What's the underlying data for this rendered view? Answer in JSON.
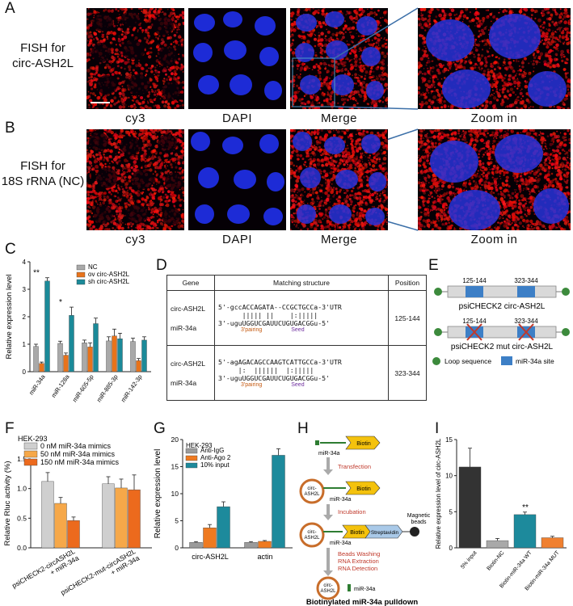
{
  "panel_letters": [
    "A",
    "B",
    "C",
    "D",
    "E",
    "F",
    "G",
    "H",
    "I"
  ],
  "panelA": {
    "row_title": [
      "FISH for",
      "circ-ASH2L"
    ],
    "captions": [
      "cy3",
      "DAPI",
      "Merge",
      "Zoom in"
    ]
  },
  "panelB": {
    "row_title": [
      "FISH for",
      "18S rRNA (NC)"
    ],
    "captions": [
      "cy3",
      "DAPI",
      "Merge",
      "Zoom in"
    ]
  },
  "colors": {
    "nc": "#a9a9a9",
    "ov": "#e8731b",
    "sh": "#1b8a99",
    "f0": "#cfcfcf",
    "f50": "#f6a849",
    "f150": "#ec6a1d",
    "igg": "#9b9b9b",
    "ago": "#ef7a20",
    "input": "#1d8a9c",
    "blue": "#3d7fc6",
    "dark": "#333333",
    "orangeI": "#f08030"
  },
  "chart_data": [
    {
      "id": "C",
      "type": "bar",
      "ylabel": "Relative expression level",
      "ylim": [
        0,
        4
      ],
      "yticks": [
        0,
        1,
        2,
        3,
        4
      ],
      "categories": [
        "miR-34a",
        "miR-128a",
        "miR-605-5p",
        "miR-885-3p",
        "miR-142-3p"
      ],
      "series": [
        {
          "name": "NC",
          "values": [
            0.92,
            1.03,
            1.05,
            1.12,
            1.1
          ],
          "err": [
            0.08,
            0.08,
            0.1,
            0.15,
            0.12
          ]
        },
        {
          "name": "ov circ-ASH2L",
          "values": [
            0.3,
            0.6,
            0.9,
            1.3,
            0.4
          ],
          "err": [
            0.05,
            0.08,
            0.15,
            0.25,
            0.08
          ]
        },
        {
          "name": "sh circ-ASH2L",
          "values": [
            3.3,
            2.05,
            1.75,
            1.2,
            1.15
          ],
          "err": [
            0.12,
            0.3,
            0.2,
            0.2,
            0.12
          ]
        }
      ],
      "annotations": [
        {
          "category": 0,
          "text": "**"
        },
        {
          "category": 1,
          "text": "*"
        }
      ]
    },
    {
      "id": "F",
      "type": "bar",
      "ylabel": "Relative Rluc activity (%)",
      "ylim": [
        0,
        1.5
      ],
      "yticks": [
        0.0,
        0.5,
        1.0,
        1.5
      ],
      "legend_title": "HEK-293",
      "categories": [
        "psiCHECK2-circASH2L\n+ miR-34a",
        "psiCHECK2-mut-circASH2L\n+ miR-34a"
      ],
      "series": [
        {
          "name": "0 nM miR-34a mimics",
          "values": [
            1.12,
            1.08
          ],
          "err": [
            0.15,
            0.12
          ]
        },
        {
          "name": "50 nM miR-34a mimics",
          "values": [
            0.75,
            1.01
          ],
          "err": [
            0.1,
            0.15
          ]
        },
        {
          "name": "150 nM miR-34a mimics",
          "values": [
            0.46,
            0.98
          ],
          "err": [
            0.06,
            0.25
          ]
        }
      ]
    },
    {
      "id": "G",
      "type": "bar",
      "ylabel": "Relative expression level",
      "ylim": [
        0,
        20
      ],
      "yticks": [
        0,
        5,
        10,
        15,
        20
      ],
      "legend_title": "HEK-293",
      "categories": [
        "circ-ASH2L",
        "actin"
      ],
      "series": [
        {
          "name": "Anti-IgG",
          "values": [
            1.0,
            1.0
          ],
          "err": [
            0.15,
            0.15
          ]
        },
        {
          "name": "Anti-Ago 2",
          "values": [
            3.7,
            1.2
          ],
          "err": [
            0.6,
            0.15
          ]
        },
        {
          "name": "10% input",
          "values": [
            7.6,
            17.1
          ],
          "err": [
            0.9,
            1.2
          ]
        }
      ]
    },
    {
      "id": "I",
      "type": "bar",
      "ylabel": "Relative expression level of circ-ASH2L",
      "ylim": [
        0,
        15
      ],
      "yticks": [
        0,
        5,
        10,
        15
      ],
      "categories": [
        "5% input",
        "Biotin-NC",
        "Biotin-miR-34a WT",
        "Biotin-miR-34a MUT"
      ],
      "values": [
        11.2,
        1.0,
        4.6,
        1.4
      ],
      "err": [
        2.6,
        0.3,
        0.35,
        0.2
      ],
      "annotations": [
        {
          "category": 2,
          "text": "**"
        }
      ]
    }
  ],
  "panelD": {
    "headers": [
      "Gene",
      "Matching structure",
      "Position"
    ],
    "rows": [
      {
        "gene1": "circ-ASH2L",
        "gene2": "miR-34a",
        "seq1": "5'-gccACCAGATA--CCGCTGCCa-3'UTR",
        "pairs": "      ||||| ||    |:|||||  ",
        "seq2": "3'-uguUGGUCGAUUCUGUGACGGu-5'",
        "lab1": "3'pairing",
        "lab2": "Seed",
        "position": "125-144"
      },
      {
        "gene1": "circ-ASH2L",
        "gene2": "miR-34a",
        "seq1": "5'-agAGACAGCCAAGTCATTGCCa-3'UTR",
        "pairs": "     |:  ||||||  |:|||||  ",
        "seq2": "3'-uguUGGUCGAUUCUGUGACGGu-5'",
        "lab1": "3'pairing",
        "lab2": "Seed",
        "position": "323-344"
      }
    ]
  },
  "panelE": {
    "site1": "125-144",
    "site2": "323-344",
    "title1": "psiCHECK2 circ-ASH2L",
    "title2": "psiCHECK2 mut circ-ASH2L",
    "legend_loop": "Loop sequence",
    "legend_site": "miR-34a site"
  },
  "panelH": {
    "biotin": "Biotin",
    "mirna": "miR-34a",
    "circ": [
      "circ-",
      "ASH2L"
    ],
    "step1": "Transfection",
    "step2": "Incubation",
    "step3": [
      "Beads Washing",
      "RNA Extraction",
      "RNA Detection"
    ],
    "streptavidin": "Streptavidin",
    "beads": [
      "Magnetic",
      "beads"
    ],
    "title": "Biotinylated miR-34a pulldown"
  }
}
